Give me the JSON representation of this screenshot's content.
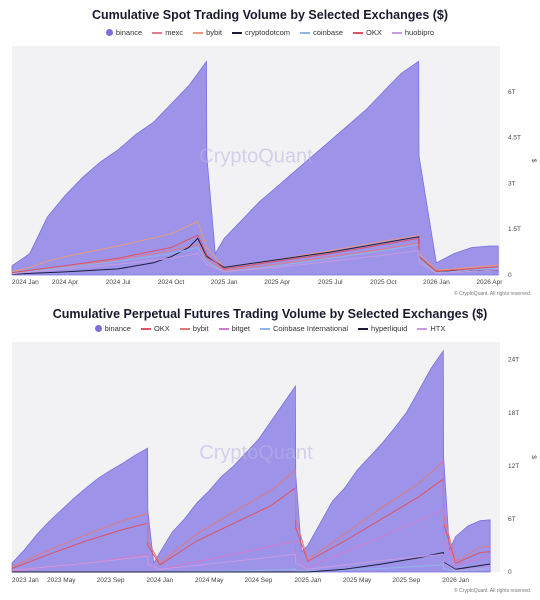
{
  "watermark": "CryptoQuant",
  "copyright": "© CryptoQuant. All rights reserved.",
  "unit_label": "$",
  "chart_data": [
    {
      "type": "area",
      "title": "Cumulative Spot Trading Volume by Selected Exchanges ($)",
      "ylim": [
        0,
        7.5
      ],
      "yticks": [
        "0",
        "1.5T",
        "3T",
        "4.5T",
        "6T"
      ],
      "ytick_values": [
        0,
        1.5,
        3,
        4.5,
        6
      ],
      "xticks": [
        "2024 Jan",
        "2024 Apr",
        "2024 Jul",
        "2024 Oct",
        "2025 Jan",
        "2025 Apr",
        "2025 Jul",
        "2025 Oct",
        "2026 Jan",
        "2026 Apr"
      ],
      "xtick_values": [
        0,
        3,
        6,
        9,
        12,
        15,
        18,
        21,
        24,
        27
      ],
      "xlim": [
        0,
        27.6
      ],
      "series": [
        {
          "name": "binance",
          "color": "#7b6fe0",
          "fill": true,
          "x": [
            0,
            1,
            2,
            3,
            4,
            5,
            6,
            7,
            8,
            9,
            10,
            11,
            11.02,
            11.5,
            12,
            13,
            14,
            15,
            16,
            17,
            18,
            19,
            20,
            21,
            22,
            23,
            23.02,
            24,
            25,
            26,
            27,
            27.5
          ],
          "y": [
            0.3,
            0.7,
            1.9,
            2.6,
            3.2,
            3.7,
            4.1,
            4.6,
            5.0,
            5.6,
            6.2,
            7.0,
            3.9,
            0.7,
            1.2,
            1.8,
            2.4,
            2.9,
            3.4,
            3.9,
            4.4,
            4.9,
            5.4,
            6.0,
            6.6,
            7.0,
            3.9,
            0.4,
            0.7,
            0.9,
            0.95,
            0.95
          ]
        },
        {
          "name": "mexc",
          "color": "#e07a8c",
          "fill": false,
          "x": [
            0,
            3,
            6,
            9,
            10.5,
            11.02,
            12,
            15,
            18,
            21,
            23,
            23.02,
            24,
            27,
            27.5
          ],
          "y": [
            0.05,
            0.25,
            0.5,
            0.8,
            1.0,
            0.5,
            0.15,
            0.35,
            0.6,
            0.85,
            1.05,
            0.5,
            0.1,
            0.25,
            0.28
          ]
        },
        {
          "name": "bybit",
          "color": "#e89a7a",
          "fill": false,
          "x": [
            0,
            1,
            2,
            3,
            6,
            9,
            10.5,
            11.02,
            12,
            15,
            18,
            21,
            23,
            23.02,
            24,
            27,
            27.5
          ],
          "y": [
            0.1,
            0.25,
            0.45,
            0.6,
            0.95,
            1.35,
            1.75,
            0.9,
            0.25,
            0.5,
            0.8,
            1.1,
            1.3,
            0.7,
            0.15,
            0.3,
            0.32
          ]
        },
        {
          "name": "cryptodotcom",
          "color": "#1c1c3a",
          "fill": false,
          "x": [
            0,
            3,
            6,
            8,
            9,
            10,
            10.5,
            11.02,
            12,
            15,
            18,
            21,
            23,
            23.02,
            24,
            27,
            27.5
          ],
          "y": [
            0.03,
            0.1,
            0.2,
            0.4,
            0.6,
            0.9,
            1.2,
            0.6,
            0.25,
            0.5,
            0.75,
            1.05,
            1.25,
            0.6,
            0.12,
            0.15,
            0.16
          ]
        },
        {
          "name": "coinbase",
          "color": "#8fb7e8",
          "fill": false,
          "x": [
            0,
            3,
            6,
            9,
            10.5,
            11.02,
            12,
            15,
            18,
            21,
            23,
            23.02,
            24,
            27,
            27.5
          ],
          "y": [
            0.05,
            0.25,
            0.45,
            0.7,
            0.9,
            0.45,
            0.1,
            0.3,
            0.55,
            0.8,
            1.0,
            0.5,
            0.08,
            0.2,
            0.22
          ]
        },
        {
          "name": "OKX",
          "color": "#e05060",
          "fill": false,
          "x": [
            0,
            3,
            6,
            9,
            10.5,
            11.02,
            12,
            15,
            18,
            21,
            23,
            23.02,
            24,
            27,
            27.5
          ],
          "y": [
            0.08,
            0.3,
            0.55,
            0.9,
            1.3,
            0.65,
            0.2,
            0.45,
            0.7,
            1.0,
            1.2,
            0.6,
            0.12,
            0.25,
            0.27
          ]
        },
        {
          "name": "huobipro",
          "color": "#c89ae0",
          "fill": false,
          "x": [
            0,
            3,
            6,
            9,
            10.5,
            11.02,
            12,
            15,
            18,
            21,
            23,
            23.02,
            24,
            27,
            27.5
          ],
          "y": [
            0.04,
            0.2,
            0.35,
            0.55,
            0.7,
            0.35,
            0.1,
            0.25,
            0.45,
            0.65,
            0.8,
            0.4,
            0.06,
            0.15,
            0.17
          ]
        }
      ]
    },
    {
      "type": "area",
      "title": "Cumulative Perpetual Futures Trading Volume by Selected Exchanges ($)",
      "ylim": [
        0,
        26
      ],
      "yticks": [
        "0",
        "6T",
        "12T",
        "18T",
        "24T"
      ],
      "ytick_values": [
        0,
        6,
        12,
        18,
        24
      ],
      "xticks": [
        "2023 Jan",
        "2023 May",
        "2023 Sep",
        "2024 Jan",
        "2024 May",
        "2024 Sep",
        "2025 Jan",
        "2025 May",
        "2025 Sep",
        "2026 Jan"
      ],
      "xtick_values": [
        0,
        4,
        8,
        12,
        16,
        20,
        24,
        28,
        32,
        36
      ],
      "xlim": [
        0,
        39.6
      ],
      "series": [
        {
          "name": "binance",
          "color": "#7b6fe0",
          "fill": true,
          "x": [
            0,
            1,
            2,
            3,
            4,
            5,
            6,
            7,
            8,
            9,
            10,
            11,
            11.02,
            11.5,
            12,
            13,
            14,
            15,
            16,
            17,
            18,
            19,
            20,
            21,
            22,
            23,
            23.02,
            23.5,
            24,
            25,
            26,
            27,
            28,
            29,
            30,
            31,
            32,
            33,
            34,
            35,
            35.02,
            35.5,
            36,
            37,
            38,
            38.8
          ],
          "y": [
            1.0,
            2.5,
            4.2,
            5.7,
            7.0,
            8.3,
            9.5,
            10.6,
            11.5,
            12.3,
            13.2,
            14.0,
            7.0,
            1.0,
            2.2,
            4.5,
            6.0,
            7.8,
            9.2,
            10.8,
            12.0,
            13.5,
            15.0,
            17.0,
            19.0,
            21.0,
            11.0,
            2.3,
            3.0,
            5.5,
            8.0,
            9.5,
            11.5,
            13.0,
            14.5,
            16.2,
            18.0,
            20.5,
            23.0,
            25.0,
            13.0,
            2.5,
            4.0,
            5.2,
            5.8,
            5.9
          ]
        },
        {
          "name": "OKX",
          "color": "#e05060",
          "fill": false,
          "x": [
            0,
            3,
            6,
            9,
            11,
            11.02,
            12,
            15,
            18,
            21,
            23,
            23.02,
            24,
            27,
            30,
            33,
            35,
            35.02,
            36,
            38,
            38.8
          ],
          "y": [
            0.4,
            2.0,
            3.5,
            4.8,
            5.5,
            3.0,
            0.8,
            3.5,
            5.5,
            7.5,
            9.5,
            5.0,
            1.2,
            3.5,
            6.0,
            8.5,
            10.5,
            5.5,
            1.0,
            2.2,
            2.3
          ]
        },
        {
          "name": "bybit",
          "color": "#e07a7a",
          "fill": false,
          "x": [
            0,
            3,
            6,
            9,
            11,
            11.02,
            12,
            15,
            18,
            21,
            23,
            23.02,
            24,
            27,
            30,
            33,
            35,
            35.02,
            36,
            38,
            38.8
          ],
          "y": [
            0.6,
            2.5,
            4.2,
            5.8,
            6.6,
            3.5,
            1.0,
            4.3,
            6.8,
            9.2,
            11.5,
            6.0,
            1.4,
            4.3,
            7.3,
            10.0,
            12.5,
            6.5,
            1.2,
            2.8,
            2.9
          ]
        },
        {
          "name": "bitget",
          "color": "#d07acc",
          "fill": false,
          "x": [
            0,
            6,
            11,
            11.02,
            12,
            18,
            23,
            23.02,
            24,
            30,
            35,
            35.02,
            36,
            38.8
          ],
          "y": [
            0.1,
            1.0,
            2.0,
            1.0,
            0.3,
            2.0,
            3.5,
            2.0,
            0.5,
            4.0,
            7.0,
            3.5,
            0.8,
            1.8
          ]
        },
        {
          "name": "Coinbase International",
          "color": "#8fb7e8",
          "fill": false,
          "x": [
            0,
            12,
            18,
            23,
            23.02,
            24,
            30,
            35,
            35.02,
            36,
            38.8
          ],
          "y": [
            0,
            0,
            0.1,
            0.3,
            0.15,
            0.1,
            0.4,
            0.8,
            0.4,
            0.1,
            0.3
          ]
        },
        {
          "name": "hyperliquid",
          "color": "#1c1c3a",
          "fill": false,
          "x": [
            0,
            24,
            27,
            30,
            33,
            35,
            35.02,
            36,
            38.8
          ],
          "y": [
            0,
            0,
            0.3,
            0.9,
            1.6,
            2.2,
            1.1,
            0.3,
            0.9
          ]
        },
        {
          "name": "HTX",
          "color": "#c89ae0",
          "fill": false,
          "x": [
            0,
            6,
            11,
            11.02,
            12,
            18,
            23,
            23.02,
            24,
            30,
            35,
            35.02,
            36,
            38.8
          ],
          "y": [
            0.2,
            1.0,
            1.8,
            0.9,
            0.3,
            1.2,
            2.0,
            1.0,
            0.3,
            1.3,
            2.0,
            1.0,
            0.2,
            0.5
          ]
        }
      ]
    }
  ]
}
